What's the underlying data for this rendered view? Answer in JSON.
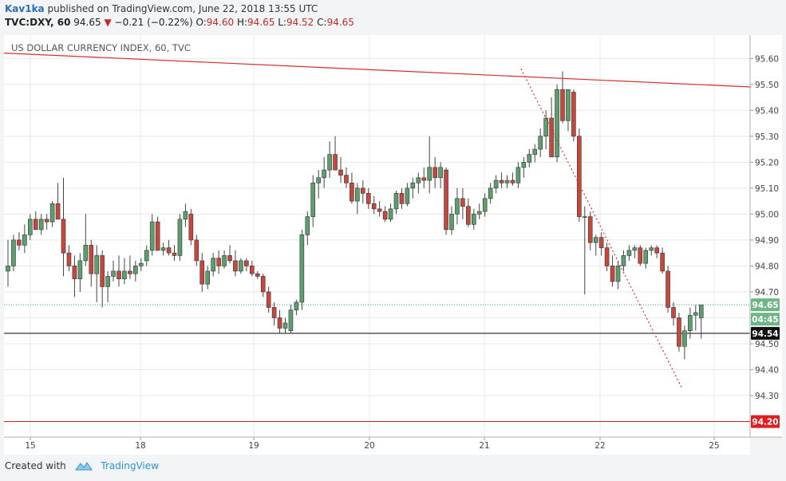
{
  "header": {
    "author": "Kav1ka",
    "published": "published on TradingView.com, June 22, 2018 13:55 UTC",
    "symbol": "TVC:DXY, 60",
    "last": "94.65",
    "change_arrow": "▼",
    "change": "−0.21 (−0.22%)",
    "o_label": "O:",
    "o_val": "94.60",
    "h_label": "H:",
    "h_val": "94.65",
    "l_label": "L:",
    "l_val": "94.52",
    "c_label": "C:",
    "c_val": "94.65"
  },
  "footer": {
    "created_with": "Created with",
    "brand": "TradingView"
  },
  "colors": {
    "up": "#5c9e6e",
    "down": "#c8473d",
    "trendline": "#d32f2f",
    "support": "#c62828",
    "current_price": "#26a69a",
    "black_line": "#000000",
    "grid": "#e8e8e8"
  },
  "chart_data": {
    "type": "candlestick",
    "title": "US DOLLAR CURRENCY INDEX, 60, TVC",
    "ylim": [
      94.14,
      95.69
    ],
    "y_ticks": [
      "95.60",
      "95.50",
      "95.40",
      "95.30",
      "95.20",
      "95.10",
      "95.00",
      "94.90",
      "94.80",
      "94.70",
      "94.60",
      "94.50",
      "94.40",
      "94.30"
    ],
    "x_ticks": [
      "15",
      "18",
      "19",
      "20",
      "21",
      "22",
      "25"
    ],
    "price_labels": [
      {
        "value": 94.65,
        "text": "94.65",
        "style": "current"
      },
      {
        "text": "04:45",
        "style": "countdown"
      },
      {
        "value": 94.54,
        "text": "94.54",
        "style": "black"
      },
      {
        "value": 94.2,
        "text": "94.20",
        "style": "support"
      }
    ],
    "horizontal_lines": [
      {
        "value": 94.65,
        "style": "dotted-green"
      },
      {
        "value": 94.54,
        "style": "solid-black"
      },
      {
        "value": 94.2,
        "style": "solid-red"
      }
    ],
    "trendlines": [
      {
        "x_from": 0,
        "y_from": 95.62,
        "x_to": 134,
        "y_to": 95.49,
        "style": "solid-red"
      },
      {
        "x_from": 92.5,
        "y_from": 95.56,
        "x_to": 121.5,
        "y_to": 94.33,
        "style": "dotted-red"
      }
    ],
    "candles": [
      [
        94.78,
        94.9,
        94.72,
        94.8
      ],
      [
        94.8,
        94.92,
        94.78,
        94.9
      ],
      [
        94.9,
        94.93,
        94.86,
        94.88
      ],
      [
        94.88,
        94.96,
        94.85,
        94.92
      ],
      [
        94.92,
        95.0,
        94.9,
        94.98
      ],
      [
        94.98,
        95.01,
        94.95,
        94.94
      ],
      [
        94.94,
        95.0,
        94.92,
        94.98
      ],
      [
        94.98,
        95.0,
        94.94,
        94.97
      ],
      [
        94.97,
        95.05,
        94.95,
        95.04
      ],
      [
        95.04,
        95.12,
        94.98,
        94.98
      ],
      [
        94.98,
        95.14,
        94.76,
        94.85
      ],
      [
        94.85,
        94.88,
        94.78,
        94.8
      ],
      [
        94.8,
        94.84,
        94.68,
        94.75
      ],
      [
        94.75,
        94.85,
        94.7,
        94.82
      ],
      [
        94.82,
        95.0,
        94.8,
        94.88
      ],
      [
        94.88,
        94.9,
        94.72,
        94.77
      ],
      [
        94.77,
        94.88,
        94.66,
        94.84
      ],
      [
        94.84,
        94.86,
        94.64,
        94.72
      ],
      [
        94.72,
        94.78,
        94.66,
        94.76
      ],
      [
        94.76,
        94.82,
        94.74,
        94.78
      ],
      [
        94.78,
        94.84,
        94.72,
        94.75
      ],
      [
        94.75,
        94.83,
        94.73,
        94.78
      ],
      [
        94.78,
        94.84,
        94.75,
        94.77
      ],
      [
        94.77,
        94.82,
        94.74,
        94.8
      ],
      [
        94.8,
        94.83,
        94.78,
        94.81
      ],
      [
        94.82,
        94.88,
        94.8,
        94.86
      ],
      [
        94.86,
        95.0,
        94.84,
        94.97
      ],
      [
        94.97,
        94.99,
        94.86,
        94.86
      ],
      [
        94.86,
        94.89,
        94.84,
        94.87
      ],
      [
        94.87,
        94.9,
        94.84,
        94.85
      ],
      [
        94.85,
        94.88,
        94.82,
        94.84
      ],
      [
        94.84,
        95.0,
        94.82,
        94.98
      ],
      [
        94.98,
        95.04,
        94.95,
        95.01
      ],
      [
        95.0,
        95.02,
        94.88,
        94.9
      ],
      [
        94.9,
        94.92,
        94.8,
        94.82
      ],
      [
        94.82,
        94.85,
        94.7,
        94.73
      ],
      [
        94.73,
        94.8,
        94.71,
        94.78
      ],
      [
        94.78,
        94.85,
        94.76,
        94.83
      ],
      [
        94.83,
        94.86,
        94.77,
        94.8
      ],
      [
        94.8,
        94.86,
        94.79,
        94.84
      ],
      [
        94.84,
        94.88,
        94.81,
        94.82
      ],
      [
        94.82,
        94.86,
        94.76,
        94.78
      ],
      [
        94.78,
        94.83,
        94.77,
        94.82
      ],
      [
        94.82,
        94.83,
        94.78,
        94.8
      ],
      [
        94.8,
        94.82,
        94.76,
        94.77
      ],
      [
        94.77,
        94.78,
        94.75,
        94.76
      ],
      [
        94.76,
        94.77,
        94.68,
        94.7
      ],
      [
        94.7,
        94.72,
        94.62,
        94.64
      ],
      [
        94.64,
        94.66,
        94.57,
        94.6
      ],
      [
        94.6,
        94.63,
        94.54,
        94.56
      ],
      [
        94.56,
        94.6,
        94.54,
        94.58
      ],
      [
        94.55,
        94.65,
        94.54,
        94.63
      ],
      [
        94.63,
        94.67,
        94.61,
        94.66
      ],
      [
        94.66,
        94.94,
        94.63,
        94.92
      ],
      [
        94.92,
        95.01,
        94.88,
        94.99
      ],
      [
        94.99,
        95.15,
        94.95,
        95.12
      ],
      [
        95.12,
        95.17,
        95.06,
        95.14
      ],
      [
        95.14,
        95.22,
        95.1,
        95.17
      ],
      [
        95.17,
        95.28,
        95.14,
        95.23
      ],
      [
        95.23,
        95.3,
        95.17,
        95.17
      ],
      [
        95.17,
        95.22,
        95.12,
        95.15
      ],
      [
        95.15,
        95.18,
        95.1,
        95.12
      ],
      [
        95.12,
        95.16,
        95.04,
        95.05
      ],
      [
        95.05,
        95.12,
        95.0,
        95.1
      ],
      [
        95.1,
        95.13,
        95.04,
        95.08
      ],
      [
        95.08,
        95.1,
        95.02,
        95.04
      ],
      [
        95.04,
        95.07,
        95.0,
        95.02
      ],
      [
        95.02,
        95.05,
        94.99,
        95.01
      ],
      [
        95.01,
        95.03,
        94.97,
        94.98
      ],
      [
        94.98,
        95.04,
        94.97,
        95.02
      ],
      [
        95.02,
        95.09,
        95.0,
        95.08
      ],
      [
        95.08,
        95.1,
        95.02,
        95.04
      ],
      [
        95.04,
        95.12,
        95.03,
        95.1
      ],
      [
        95.1,
        95.14,
        95.06,
        95.12
      ],
      [
        95.12,
        95.16,
        95.08,
        95.14
      ],
      [
        95.14,
        95.18,
        95.1,
        95.13
      ],
      [
        95.13,
        95.3,
        95.08,
        95.18
      ],
      [
        95.18,
        95.22,
        95.1,
        95.14
      ],
      [
        95.14,
        95.2,
        95.1,
        95.18
      ],
      [
        95.17,
        95.18,
        94.92,
        94.94
      ],
      [
        94.94,
        95.03,
        94.92,
        95.0
      ],
      [
        95.0,
        95.1,
        94.96,
        95.06
      ],
      [
        95.06,
        95.1,
        94.98,
        95.03
      ],
      [
        95.03,
        95.06,
        94.95,
        94.96
      ],
      [
        94.96,
        95.02,
        94.94,
        95.0
      ],
      [
        95.0,
        95.04,
        94.98,
        95.01
      ],
      [
        95.01,
        95.08,
        94.99,
        95.06
      ],
      [
        95.06,
        95.12,
        95.04,
        95.1
      ],
      [
        95.1,
        95.15,
        95.08,
        95.13
      ],
      [
        95.13,
        95.16,
        95.1,
        95.12
      ],
      [
        95.12,
        95.15,
        95.1,
        95.13
      ],
      [
        95.13,
        95.16,
        95.11,
        95.12
      ],
      [
        95.12,
        95.2,
        95.1,
        95.18
      ],
      [
        95.18,
        95.22,
        95.14,
        95.2
      ],
      [
        95.2,
        95.25,
        95.18,
        95.23
      ],
      [
        95.23,
        95.27,
        95.2,
        95.25
      ],
      [
        95.25,
        95.33,
        95.22,
        95.3
      ],
      [
        95.3,
        95.4,
        95.25,
        95.37
      ],
      [
        95.37,
        95.45,
        95.22,
        95.22
      ],
      [
        95.22,
        95.5,
        95.2,
        95.48
      ],
      [
        95.48,
        95.55,
        95.35,
        95.36
      ],
      [
        95.36,
        95.47,
        95.32,
        95.48
      ],
      [
        95.47,
        95.48,
        95.28,
        95.3
      ],
      [
        95.3,
        95.33,
        94.97,
        94.99
      ],
      [
        94.99,
        95.03,
        94.69,
        94.99
      ],
      [
        94.99,
        95.01,
        94.86,
        94.89
      ],
      [
        94.89,
        94.92,
        94.84,
        94.91
      ],
      [
        94.91,
        94.93,
        94.84,
        94.87
      ],
      [
        94.87,
        94.89,
        94.78,
        94.8
      ],
      [
        94.8,
        94.84,
        94.72,
        94.74
      ],
      [
        94.74,
        94.82,
        94.71,
        94.8
      ],
      [
        94.8,
        94.86,
        94.78,
        94.84
      ],
      [
        94.84,
        94.88,
        94.82,
        94.86
      ],
      [
        94.86,
        94.88,
        94.83,
        94.87
      ],
      [
        94.87,
        94.88,
        94.8,
        94.81
      ],
      [
        94.81,
        94.87,
        94.79,
        94.86
      ],
      [
        94.86,
        94.88,
        94.84,
        94.87
      ],
      [
        94.87,
        94.88,
        94.83,
        94.85
      ],
      [
        94.85,
        94.87,
        94.77,
        94.78
      ],
      [
        94.78,
        94.8,
        94.62,
        94.64
      ],
      [
        94.64,
        94.66,
        94.57,
        94.6
      ],
      [
        94.6,
        94.62,
        94.47,
        94.49
      ],
      [
        94.49,
        94.57,
        94.44,
        94.55
      ],
      [
        94.55,
        94.64,
        94.52,
        94.61
      ],
      [
        94.61,
        94.65,
        94.55,
        94.62
      ],
      [
        94.6,
        94.65,
        94.52,
        94.65
      ]
    ]
  }
}
